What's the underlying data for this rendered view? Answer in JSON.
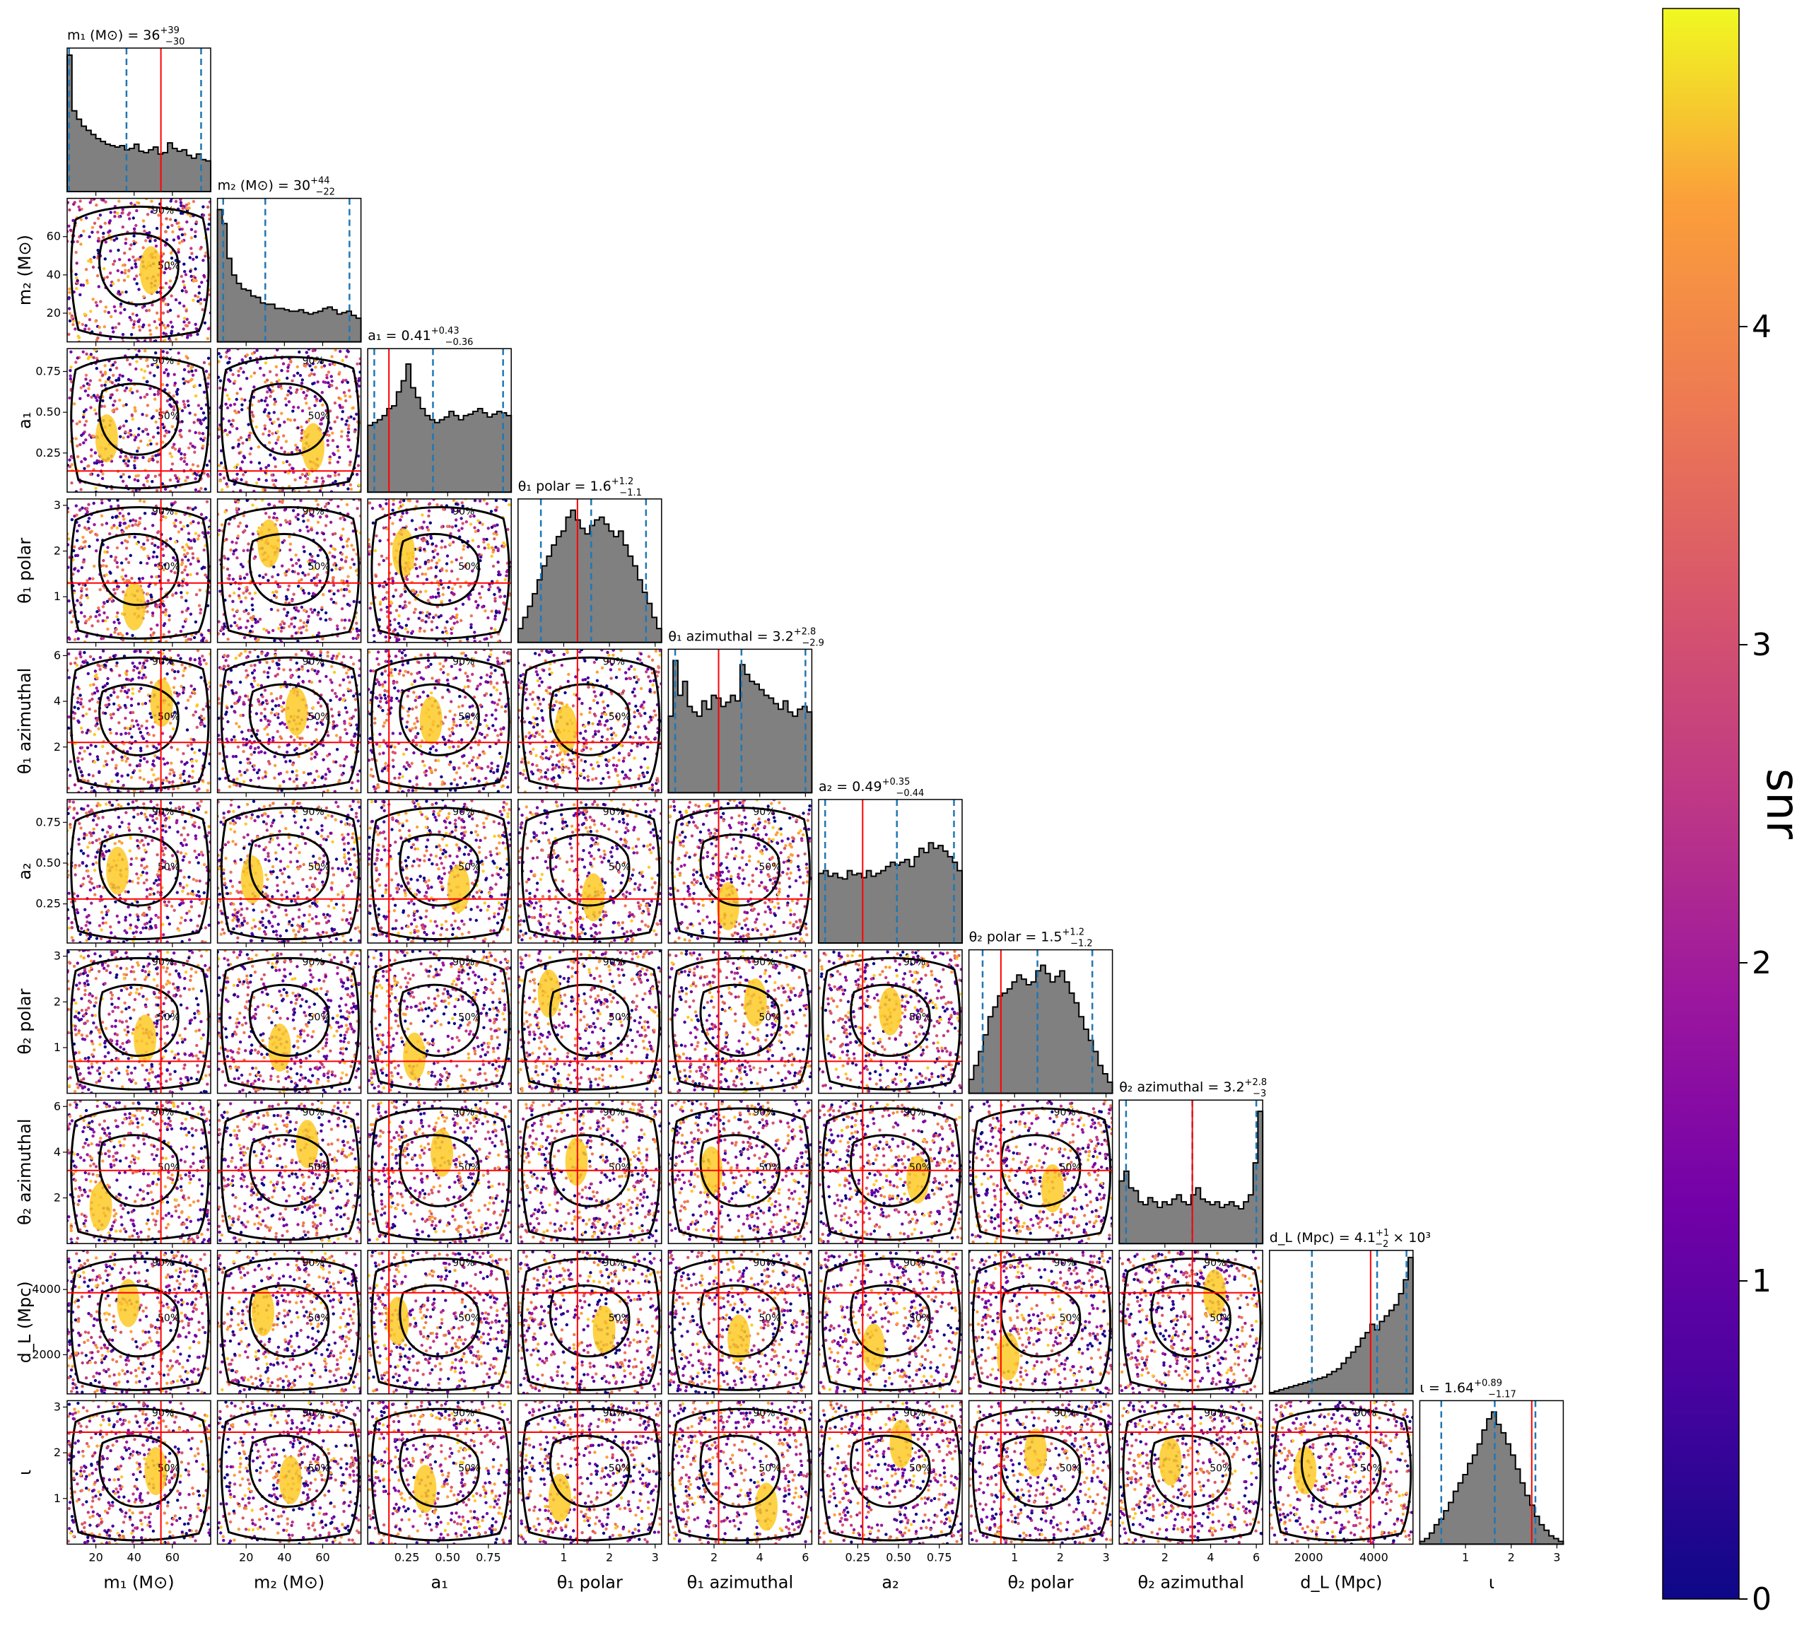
{
  "chart_data": {
    "type": "corner",
    "parameters": [
      {
        "key": "m1",
        "label": "m₁ (M⊙)",
        "title": "m₁ (M⊙) = 36",
        "sup": "+39",
        "sub": "−30",
        "range": [
          5,
          80
        ],
        "ticks": [
          20,
          40,
          60
        ],
        "tick_labels": [
          "20",
          "40",
          "60"
        ],
        "truth": 54,
        "median": 36,
        "lower": 6,
        "upper": 75,
        "hist": [
          0.98,
          0.58,
          0.52,
          0.47,
          0.44,
          0.41,
          0.38,
          0.36,
          0.34,
          0.33,
          0.32,
          0.33,
          0.3,
          0.31,
          0.34,
          0.29,
          0.28,
          0.3,
          0.32,
          0.27,
          0.28,
          0.35,
          0.31,
          0.29,
          0.3,
          0.26,
          0.24,
          0.27,
          0.23,
          0.22
        ]
      },
      {
        "key": "m2",
        "label": "m₂ (M⊙)",
        "title": "m₂ (M⊙) = 30",
        "sup": "+44",
        "sub": "−22",
        "range": [
          5,
          80
        ],
        "ticks": [
          20,
          40,
          60
        ],
        "tick_labels": [
          "20",
          "40",
          "60"
        ],
        "truth": null,
        "median": 30,
        "lower": 8,
        "upper": 74,
        "hist": [
          0.95,
          0.85,
          0.6,
          0.48,
          0.42,
          0.38,
          0.37,
          0.33,
          0.32,
          0.28,
          0.27,
          0.27,
          0.24,
          0.24,
          0.23,
          0.22,
          0.22,
          0.23,
          0.21,
          0.2,
          0.21,
          0.22,
          0.24,
          0.25,
          0.23,
          0.2,
          0.21,
          0.22,
          0.19,
          0.17
        ]
      },
      {
        "key": "a1",
        "label": "a₁",
        "title": "a₁ = 0.41",
        "sup": "+0.43",
        "sub": "−0.36",
        "range": [
          0.01,
          0.89
        ],
        "ticks": [
          0.25,
          0.5,
          0.75
        ],
        "tick_labels": [
          "0.25",
          "0.50",
          "0.75"
        ],
        "truth": 0.14,
        "median": 0.41,
        "lower": 0.05,
        "upper": 0.84,
        "hist": [
          0.48,
          0.5,
          0.52,
          0.55,
          0.6,
          0.62,
          0.72,
          0.8,
          0.92,
          0.75,
          0.68,
          0.6,
          0.55,
          0.52,
          0.5,
          0.52,
          0.54,
          0.58,
          0.55,
          0.52,
          0.55,
          0.56,
          0.58,
          0.6,
          0.57,
          0.54,
          0.56,
          0.58,
          0.57,
          0.55
        ]
      },
      {
        "key": "theta1p",
        "label": "θ₁ polar",
        "title": "θ₁ polar = 1.6",
        "sup": "+1.2",
        "sub": "−1.1",
        "range": [
          0.0,
          3.14
        ],
        "ticks": [
          1,
          2,
          3
        ],
        "tick_labels": [
          "1",
          "2",
          "3"
        ],
        "truth": 1.3,
        "median": 1.6,
        "lower": 0.5,
        "upper": 2.8,
        "hist": [
          0.1,
          0.18,
          0.26,
          0.35,
          0.45,
          0.55,
          0.62,
          0.7,
          0.76,
          0.8,
          0.9,
          0.95,
          0.88,
          0.82,
          0.78,
          0.84,
          0.88,
          0.9,
          0.85,
          0.8,
          0.76,
          0.8,
          0.7,
          0.62,
          0.55,
          0.45,
          0.36,
          0.28,
          0.18,
          0.1
        ]
      },
      {
        "key": "theta1a",
        "label": "θ₁ azimuthal",
        "title": "θ₁ azimuthal = 3.2",
        "sup": "+2.8",
        "sub": "−2.9",
        "range": [
          0.0,
          6.28
        ],
        "ticks": [
          2,
          4,
          6
        ],
        "tick_labels": [
          "2",
          "4",
          "6"
        ],
        "truth": 2.2,
        "median": 3.2,
        "lower": 0.3,
        "upper": 6.0,
        "hist": [
          0.55,
          0.95,
          0.7,
          0.8,
          0.62,
          0.58,
          0.55,
          0.66,
          0.6,
          0.7,
          0.68,
          0.62,
          0.65,
          0.7,
          0.66,
          0.92,
          0.85,
          0.8,
          0.78,
          0.74,
          0.7,
          0.68,
          0.64,
          0.6,
          0.66,
          0.58,
          0.55,
          0.6,
          0.62,
          0.58
        ]
      },
      {
        "key": "a2",
        "label": "a₂",
        "title": "a₂ = 0.49",
        "sup": "+0.35",
        "sub": "−0.44",
        "range": [
          0.01,
          0.89
        ],
        "ticks": [
          0.25,
          0.5,
          0.75
        ],
        "tick_labels": [
          "0.25",
          "0.50",
          "0.75"
        ],
        "truth": 0.28,
        "median": 0.49,
        "lower": 0.05,
        "upper": 0.84,
        "hist": [
          0.5,
          0.52,
          0.48,
          0.5,
          0.47,
          0.46,
          0.52,
          0.49,
          0.5,
          0.47,
          0.52,
          0.48,
          0.5,
          0.52,
          0.55,
          0.58,
          0.56,
          0.58,
          0.6,
          0.55,
          0.62,
          0.68,
          0.65,
          0.72,
          0.68,
          0.7,
          0.66,
          0.62,
          0.58,
          0.52
        ]
      },
      {
        "key": "theta2p",
        "label": "θ₂ polar",
        "title": "θ₂ polar = 1.5",
        "sup": "+1.2",
        "sub": "−1.2",
        "range": [
          0.0,
          3.14
        ],
        "ticks": [
          1,
          2,
          3
        ],
        "tick_labels": [
          "1",
          "2",
          "3"
        ],
        "truth": 0.7,
        "median": 1.5,
        "lower": 0.3,
        "upper": 2.7,
        "hist": [
          0.1,
          0.2,
          0.3,
          0.42,
          0.55,
          0.62,
          0.7,
          0.72,
          0.75,
          0.8,
          0.85,
          0.82,
          0.78,
          0.8,
          0.88,
          0.92,
          0.86,
          0.8,
          0.84,
          0.88,
          0.8,
          0.72,
          0.65,
          0.55,
          0.46,
          0.38,
          0.3,
          0.2,
          0.14,
          0.08
        ]
      },
      {
        "key": "theta2a",
        "label": "θ₂ azimuthal",
        "title": "θ₂ azimuthal = 3.2",
        "sup": "+2.8",
        "sub": "−3",
        "range": [
          0.0,
          6.28
        ],
        "ticks": [
          2,
          4,
          6
        ],
        "tick_labels": [
          "2",
          "4",
          "6"
        ],
        "truth": 3.2,
        "median": 3.2,
        "lower": 0.3,
        "upper": 6.0,
        "hist": [
          0.45,
          0.52,
          0.4,
          0.38,
          0.3,
          0.28,
          0.33,
          0.3,
          0.26,
          0.3,
          0.28,
          0.32,
          0.35,
          0.3,
          0.28,
          0.35,
          0.4,
          0.32,
          0.3,
          0.28,
          0.3,
          0.26,
          0.28,
          0.3,
          0.27,
          0.25,
          0.3,
          0.35,
          0.58,
          0.95
        ]
      },
      {
        "key": "dL",
        "label": "d_L (Mpc)",
        "title": "d_L (Mpc) = 4.1",
        "sup": "+1",
        "sub": "−2",
        "title_suffix": "× 10³",
        "range": [
          800,
          5200
        ],
        "ticks": [
          2000,
          4000
        ],
        "tick_labels": [
          "2000",
          "4000"
        ],
        "truth": 3900,
        "median": 4100,
        "lower": 2100,
        "upper": 5000,
        "hist": [
          0.01,
          0.02,
          0.03,
          0.04,
          0.05,
          0.06,
          0.07,
          0.08,
          0.09,
          0.1,
          0.11,
          0.12,
          0.14,
          0.16,
          0.18,
          0.22,
          0.26,
          0.3,
          0.34,
          0.4,
          0.44,
          0.5,
          0.46,
          0.52,
          0.56,
          0.6,
          0.64,
          0.72,
          0.82,
          0.98
        ]
      },
      {
        "key": "iota",
        "label": "ι",
        "title": "ι = 1.64",
        "sup": "+0.89",
        "sub": "−1.17",
        "range": [
          0.0,
          3.14
        ],
        "ticks": [
          1,
          2,
          3
        ],
        "tick_labels": [
          "1",
          "2",
          "3"
        ],
        "truth": 2.45,
        "median": 1.64,
        "lower": 0.47,
        "upper": 2.53,
        "hist": [
          0.02,
          0.04,
          0.08,
          0.14,
          0.18,
          0.24,
          0.3,
          0.38,
          0.44,
          0.5,
          0.58,
          0.64,
          0.72,
          0.82,
          0.9,
          0.95,
          0.86,
          0.8,
          0.72,
          0.64,
          0.54,
          0.44,
          0.35,
          0.28,
          0.2,
          0.14,
          0.1,
          0.06,
          0.04,
          0.02
        ]
      }
    ],
    "contour_levels": [
      "50%",
      "90%"
    ],
    "colorbar": {
      "label": "snr",
      "min": 0,
      "max": 5,
      "ticks": [
        0,
        1,
        2,
        3,
        4
      ]
    },
    "colors": {
      "hist_fill": "#808080",
      "hist_edge": "#000000",
      "truth": "#ff0000",
      "quantile": "#1f77b4",
      "contour": "#000000"
    },
    "colormap": "plasma"
  }
}
